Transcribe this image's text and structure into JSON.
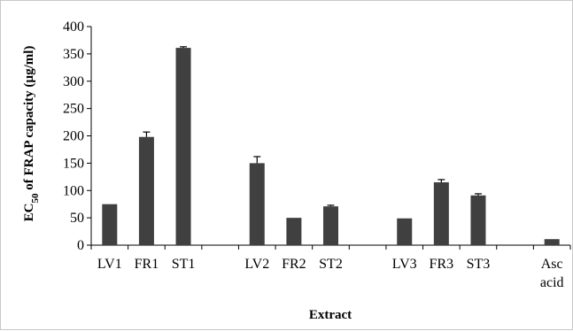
{
  "chart_data": {
    "type": "bar",
    "title": "",
    "xlabel": "Extract",
    "ylabel": {
      "prefix": "EC",
      "subscript": "50",
      "suffix": " of  FRAP capacity (µg/ml)"
    },
    "ylim": [
      0,
      400
    ],
    "yticks": [
      0,
      50,
      100,
      150,
      200,
      250,
      300,
      350,
      400
    ],
    "grid": false,
    "legend": "none",
    "bar_color": "#404040",
    "categories": [
      "LV1",
      "FR1",
      "ST1",
      "",
      "LV2",
      "FR2",
      "ST2",
      "",
      "LV3",
      "FR3",
      "ST3",
      "",
      "Asc acid"
    ],
    "category_lines": [
      [
        "LV1"
      ],
      [
        "FR1"
      ],
      [
        "ST1"
      ],
      [
        ""
      ],
      [
        "LV2"
      ],
      [
        "FR2"
      ],
      [
        "ST2"
      ],
      [
        ""
      ],
      [
        "LV3"
      ],
      [
        "FR3"
      ],
      [
        "ST3"
      ],
      [
        ""
      ],
      [
        "Asc",
        "acid"
      ]
    ],
    "series": [
      {
        "values": [
          75,
          198,
          361,
          null,
          150,
          50,
          71,
          null,
          49,
          115,
          91,
          null,
          11
        ],
        "errors": [
          0,
          9,
          2,
          null,
          12,
          0,
          2,
          null,
          0,
          5,
          3,
          null,
          0
        ]
      }
    ]
  }
}
